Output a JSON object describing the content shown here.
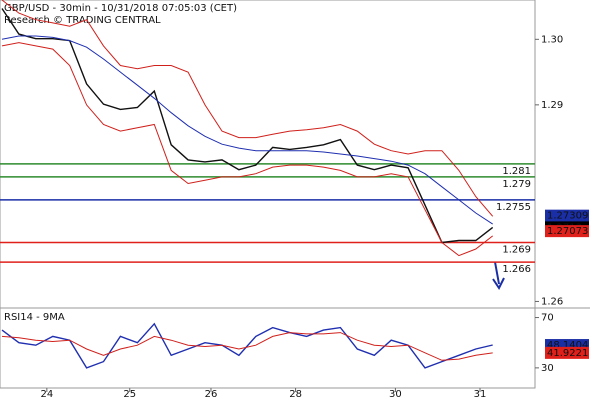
{
  "chart_data": [
    {
      "type": "line",
      "title": "GBP/USD - 30min - 10/31/2018 07:05:03 (CET)",
      "subtitle": "Research © TRADING CENTRAL",
      "x": [
        0,
        2,
        4,
        6,
        8,
        10,
        12,
        14,
        16,
        18,
        20,
        22,
        24,
        26,
        28,
        30,
        32,
        34,
        36,
        38,
        40,
        42,
        44,
        46,
        48,
        50,
        52,
        54,
        56,
        58
      ],
      "xlim": [
        0,
        63
      ],
      "ylim": [
        1.259,
        1.306
      ],
      "yticks": [
        1.26,
        1.29,
        {
          "value": 1.3,
          "label": "1.30"
        }
      ],
      "series": [
        {
          "color": "#111111",
          "values": [
            1.3047,
            1.3008,
            1.3001,
            1.3001,
            1.2998,
            1.2932,
            1.2901,
            1.2893,
            1.2896,
            1.2921,
            1.2839,
            1.2816,
            1.2813,
            1.2816,
            1.2801,
            1.2808,
            1.2835,
            1.2832,
            1.2835,
            1.2839,
            1.2847,
            1.2808,
            1.2801,
            1.2808,
            1.2804,
            1.2747,
            1.269,
            1.2693,
            1.2693,
            1.2713
          ]
        },
        {
          "color": "#1f2fb0",
          "values": [
            1.3,
            1.3005,
            1.3005,
            1.3003,
            1.2998,
            1.2988,
            1.297,
            1.295,
            1.293,
            1.291,
            1.2888,
            1.2868,
            1.2852,
            1.284,
            1.2834,
            1.283,
            1.283,
            1.283,
            1.283,
            1.2828,
            1.2825,
            1.2822,
            1.2818,
            1.2814,
            1.2808,
            1.2795,
            1.2775,
            1.2755,
            1.2735,
            1.2718
          ]
        },
        {
          "color": "#d0201b",
          "values": [
            1.306,
            1.304,
            1.303,
            1.3025,
            1.302,
            1.303,
            1.299,
            1.296,
            1.2955,
            1.296,
            1.296,
            1.295,
            1.29,
            1.286,
            1.285,
            1.285,
            1.2855,
            1.286,
            1.2862,
            1.2865,
            1.287,
            1.286,
            1.284,
            1.283,
            1.2825,
            1.283,
            1.283,
            1.28,
            1.276,
            1.273
          ]
        },
        {
          "color": "#d0201b",
          "values": [
            1.299,
            1.2995,
            1.299,
            1.2985,
            1.296,
            1.29,
            1.287,
            1.286,
            1.2865,
            1.287,
            1.28,
            1.278,
            1.2785,
            1.279,
            1.279,
            1.2795,
            1.2805,
            1.2808,
            1.2808,
            1.2805,
            1.28,
            1.279,
            1.279,
            1.2795,
            1.279,
            1.274,
            1.269,
            1.267,
            1.268,
            1.27
          ]
        }
      ],
      "levels": [
        {
          "value": 1.281,
          "color": "#2e8b2e"
        },
        {
          "value": 1.279,
          "color": "#2e8b2e"
        },
        {
          "value": 1.2755,
          "color": "#1a2ea6"
        },
        {
          "value": 1.269,
          "color": "#e0201b"
        },
        {
          "value": 1.266,
          "color": "#e0201b"
        }
      ],
      "axis_markers": [
        {
          "value": 1.27309,
          "color": "#1a2ea6"
        },
        {
          "value": 1.2713,
          "color": "#000000"
        },
        {
          "value": 1.27073,
          "color": "#e0201b"
        }
      ]
    },
    {
      "type": "line",
      "title": "RSI14 - 9MA",
      "x": [
        0,
        2,
        4,
        6,
        8,
        10,
        12,
        14,
        16,
        18,
        20,
        22,
        24,
        26,
        28,
        30,
        32,
        34,
        36,
        38,
        40,
        42,
        44,
        46,
        48,
        50,
        52,
        54,
        56,
        58
      ],
      "xlim": [
        0,
        63
      ],
      "xticks": [
        {
          "value": 5.3,
          "label": "24"
        },
        {
          "value": 15.1,
          "label": "25"
        },
        {
          "value": 24.7,
          "label": "26"
        },
        {
          "value": 34.7,
          "label": "28"
        },
        {
          "value": 46.5,
          "label": "30"
        },
        {
          "value": 56.5,
          "label": "31"
        }
      ],
      "ylim": [
        14,
        76
      ],
      "yticks": [
        30,
        70
      ],
      "series": [
        {
          "color": "#1f2fb0",
          "values": [
            60,
            50,
            48,
            55,
            52,
            30,
            35,
            55,
            50,
            65,
            40,
            45,
            50,
            48,
            40,
            55,
            62,
            58,
            55,
            60,
            62,
            45,
            40,
            52,
            48,
            30,
            35,
            40,
            45,
            48.1404
          ]
        },
        {
          "color": "#d0201b",
          "values": [
            55,
            54,
            52,
            51,
            52,
            45,
            40,
            45,
            48,
            55,
            52,
            48,
            47,
            48,
            45,
            48,
            55,
            58,
            57,
            57,
            58,
            52,
            48,
            47,
            48,
            42,
            36,
            37,
            40,
            41.9221
          ]
        }
      ],
      "axis_markers": [
        {
          "value": 48.1404,
          "color": "#1a2ea6"
        },
        {
          "value": 41.9221,
          "color": "#e0201b"
        }
      ]
    }
  ]
}
